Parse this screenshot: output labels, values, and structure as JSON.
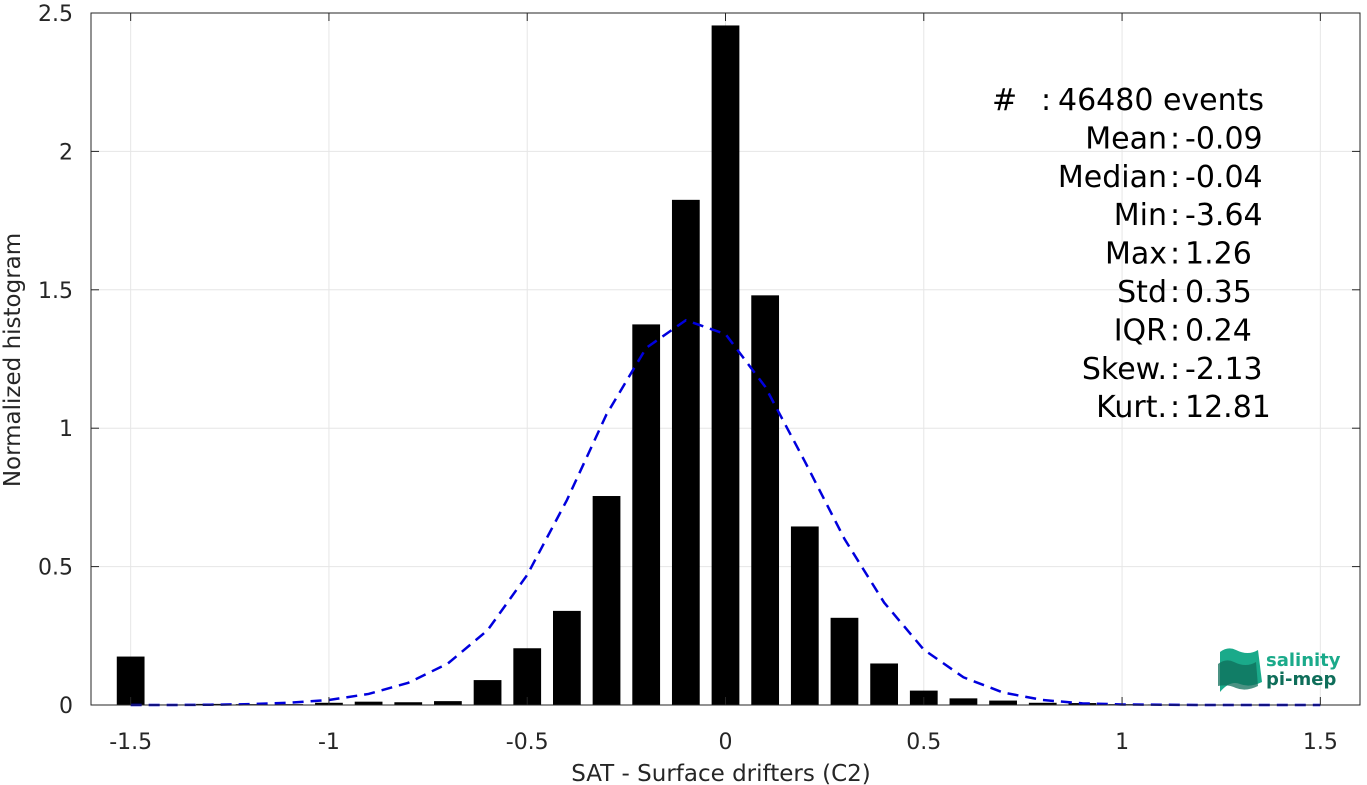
{
  "chart_data": {
    "type": "bar",
    "xlabel": "SAT - Surface drifters (C2)",
    "ylabel": "Normalized histogram",
    "xlim": [
      -1.6,
      1.6
    ],
    "ylim": [
      0,
      2.5
    ],
    "grid": true,
    "x_ticks": [
      -1.5,
      -1,
      -0.5,
      0,
      0.5,
      1,
      1.5
    ],
    "x_tick_labels": [
      "-1.5",
      "-1",
      "-0.5",
      "0",
      "0.5",
      "1",
      "1.5"
    ],
    "y_ticks": [
      0,
      0.5,
      1,
      1.5,
      2,
      2.5
    ],
    "y_tick_labels": [
      "0",
      "0.5",
      "1",
      "1.5",
      "2",
      "2.5"
    ],
    "bar_width": 0.07,
    "bar_color": "#000000",
    "bars": {
      "x": [
        -1.5,
        -1.4,
        -1.3,
        -1.2,
        -1.1,
        -1.0,
        -0.9,
        -0.8,
        -0.7,
        -0.6,
        -0.5,
        -0.4,
        -0.3,
        -0.2,
        -0.1,
        0.0,
        0.1,
        0.2,
        0.3,
        0.4,
        0.5,
        0.6,
        0.7,
        0.8,
        0.9,
        1.0,
        1.1,
        1.2,
        1.3,
        1.4,
        1.5
      ],
      "values": [
        0.175,
        0.002,
        0.004,
        0.003,
        0.003,
        0.008,
        0.012,
        0.01,
        0.014,
        0.09,
        0.205,
        0.34,
        0.755,
        1.375,
        1.825,
        2.455,
        1.48,
        0.645,
        0.315,
        0.15,
        0.052,
        0.024,
        0.016,
        0.008,
        0.007,
        0.003,
        0.002,
        0.001,
        0.001,
        0.001,
        0.001
      ]
    },
    "fit": {
      "name": "",
      "style": "dashed",
      "color": "#0000dd",
      "x": [
        -1.5,
        -1.4,
        -1.3,
        -1.2,
        -1.1,
        -1.0,
        -0.9,
        -0.8,
        -0.7,
        -0.6,
        -0.5,
        -0.4,
        -0.3,
        -0.2,
        -0.1,
        0.0,
        0.1,
        0.2,
        0.3,
        0.4,
        0.5,
        0.6,
        0.7,
        0.8,
        0.9,
        1.0,
        1.1,
        1.2,
        1.3,
        1.4,
        1.5
      ],
      "values": [
        0.0,
        0.0,
        0.001,
        0.003,
        0.008,
        0.018,
        0.04,
        0.08,
        0.15,
        0.27,
        0.47,
        0.74,
        1.05,
        1.29,
        1.39,
        1.34,
        1.15,
        0.88,
        0.6,
        0.37,
        0.2,
        0.1,
        0.045,
        0.018,
        0.006,
        0.002,
        0.001,
        0.0,
        0.0,
        0.0,
        0.0
      ]
    },
    "stats": [
      {
        "label": "#",
        "sep": ":",
        "value": "46480 events"
      },
      {
        "label": "Mean",
        "sep": ":",
        "value": "-0.09"
      },
      {
        "label": "Median",
        "sep": ":",
        "value": "-0.04"
      },
      {
        "label": "Min",
        "sep": ":",
        "value": "-3.64"
      },
      {
        "label": "Max",
        "sep": ":",
        "value": "1.26"
      },
      {
        "label": "Std",
        "sep": ":",
        "value": "0.35"
      },
      {
        "label": "IQR",
        "sep": ":",
        "value": "0.24"
      },
      {
        "label": "Skew.",
        "sep": ":",
        "value": "-2.13"
      },
      {
        "label": "Kurt.",
        "sep": ":",
        "value": "12.81"
      }
    ]
  },
  "logo": {
    "line1": "salinity",
    "line2": "pi-mep",
    "color_primary": "#1aaa8a",
    "color_dark": "#0f6e5a"
  }
}
